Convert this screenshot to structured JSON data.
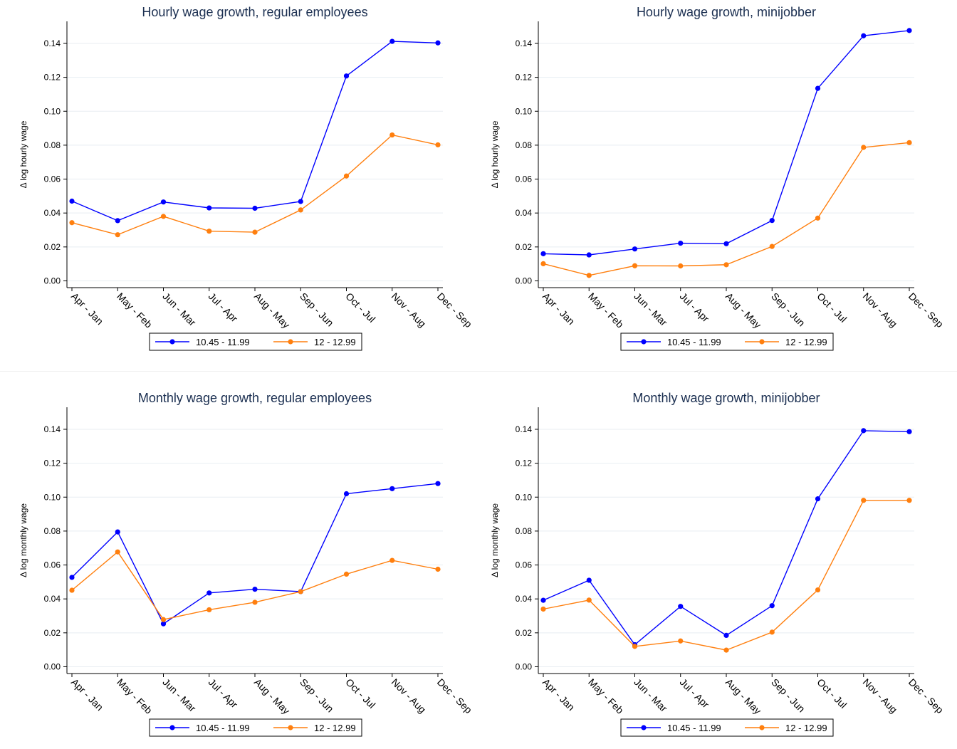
{
  "colors": {
    "series1": "#0000ff",
    "series2": "#ff7f0e",
    "title": "#1a2e50",
    "axis": "#000000",
    "grid": "#e8eef2"
  },
  "legend": {
    "items": [
      "10.45 - 11.99",
      "12 - 12.99"
    ]
  },
  "chart_data": [
    {
      "type": "line",
      "title": "Hourly wage growth, regular employees",
      "ylabel": "Δ log hourly wage",
      "xlabel": "",
      "categories": [
        "Apr - Jan",
        "May - Feb",
        "Jun - Mar",
        "Jul - Apr",
        "Aug - May",
        "Sep - Jun",
        "Oct - Jul",
        "Nov - Aug",
        "Dec - Sep"
      ],
      "yticks": [
        "0.00",
        "0.02",
        "0.04",
        "0.06",
        "0.08",
        "0.10",
        "0.12",
        "0.14"
      ],
      "ylim": [
        -0.004,
        0.153
      ],
      "grid": true,
      "legend_position": "bottom",
      "series": [
        {
          "name": "10.45 - 11.99",
          "values": [
            0.047,
            0.0355,
            0.0465,
            0.043,
            0.0428,
            0.0468,
            0.1208,
            0.1412,
            0.1403
          ]
        },
        {
          "name": "12 - 12.99",
          "values": [
            0.0343,
            0.0272,
            0.038,
            0.0293,
            0.0287,
            0.0418,
            0.0618,
            0.086,
            0.0802
          ]
        }
      ]
    },
    {
      "type": "line",
      "title": "Hourly wage growth, minijobber",
      "ylabel": "Δ log hourly wage",
      "xlabel": "",
      "categories": [
        "Apr - Jan",
        "May - Feb",
        "Jun - Mar",
        "Jul - Apr",
        "Aug - May",
        "Sep - Jun",
        "Oct - Jul",
        "Nov - Aug",
        "Dec - Sep"
      ],
      "yticks": [
        "0.00",
        "0.02",
        "0.04",
        "0.06",
        "0.08",
        "0.10",
        "0.12",
        "0.14"
      ],
      "ylim": [
        -0.004,
        0.153
      ],
      "grid": true,
      "legend_position": "bottom",
      "series": [
        {
          "name": "10.45 - 11.99",
          "values": [
            0.016,
            0.0153,
            0.0188,
            0.0222,
            0.0219,
            0.0356,
            0.1135,
            0.1445,
            0.1476
          ]
        },
        {
          "name": "12 - 12.99",
          "values": [
            0.0101,
            0.0032,
            0.0089,
            0.0088,
            0.0095,
            0.0203,
            0.037,
            0.0787,
            0.0815
          ]
        }
      ]
    },
    {
      "type": "line",
      "title": "Monthly wage growth, regular employees",
      "ylabel": "Δ log monthly wage",
      "xlabel": "",
      "categories": [
        "Apr - Jan",
        "May - Feb",
        "Jun - Mar",
        "Jul - Apr",
        "Aug - May",
        "Sep - Jun",
        "Oct - Jul",
        "Nov - Aug",
        "Dec - Sep"
      ],
      "yticks": [
        "0.00",
        "0.02",
        "0.04",
        "0.06",
        "0.08",
        "0.10",
        "0.12",
        "0.14"
      ],
      "ylim": [
        -0.004,
        0.153
      ],
      "grid": true,
      "legend_position": "bottom",
      "series": [
        {
          "name": "10.45 - 11.99",
          "values": [
            0.0527,
            0.0795,
            0.0253,
            0.0435,
            0.0457,
            0.0443,
            0.102,
            0.105,
            0.108
          ]
        },
        {
          "name": "12 - 12.99",
          "values": [
            0.0451,
            0.0677,
            0.0278,
            0.0336,
            0.038,
            0.0443,
            0.0546,
            0.0627,
            0.0575
          ]
        }
      ]
    },
    {
      "type": "line",
      "title": "Monthly wage growth, minijobber",
      "ylabel": "Δ log monthly wage",
      "xlabel": "",
      "categories": [
        "Apr - Jan",
        "May - Feb",
        "Jun - Mar",
        "Jul - Apr",
        "Aug - May",
        "Sep - Jun",
        "Oct - Jul",
        "Nov - Aug",
        "Dec - Sep"
      ],
      "yticks": [
        "0.00",
        "0.02",
        "0.04",
        "0.06",
        "0.08",
        "0.10",
        "0.12",
        "0.14"
      ],
      "ylim": [
        -0.004,
        0.153
      ],
      "grid": true,
      "legend_position": "bottom",
      "series": [
        {
          "name": "10.45 - 11.99",
          "values": [
            0.0392,
            0.051,
            0.013,
            0.0356,
            0.0185,
            0.036,
            0.099,
            0.1392,
            0.1386
          ]
        },
        {
          "name": "12 - 12.99",
          "values": [
            0.034,
            0.0393,
            0.012,
            0.0152,
            0.0098,
            0.0204,
            0.0453,
            0.0981,
            0.0981
          ]
        }
      ]
    }
  ]
}
